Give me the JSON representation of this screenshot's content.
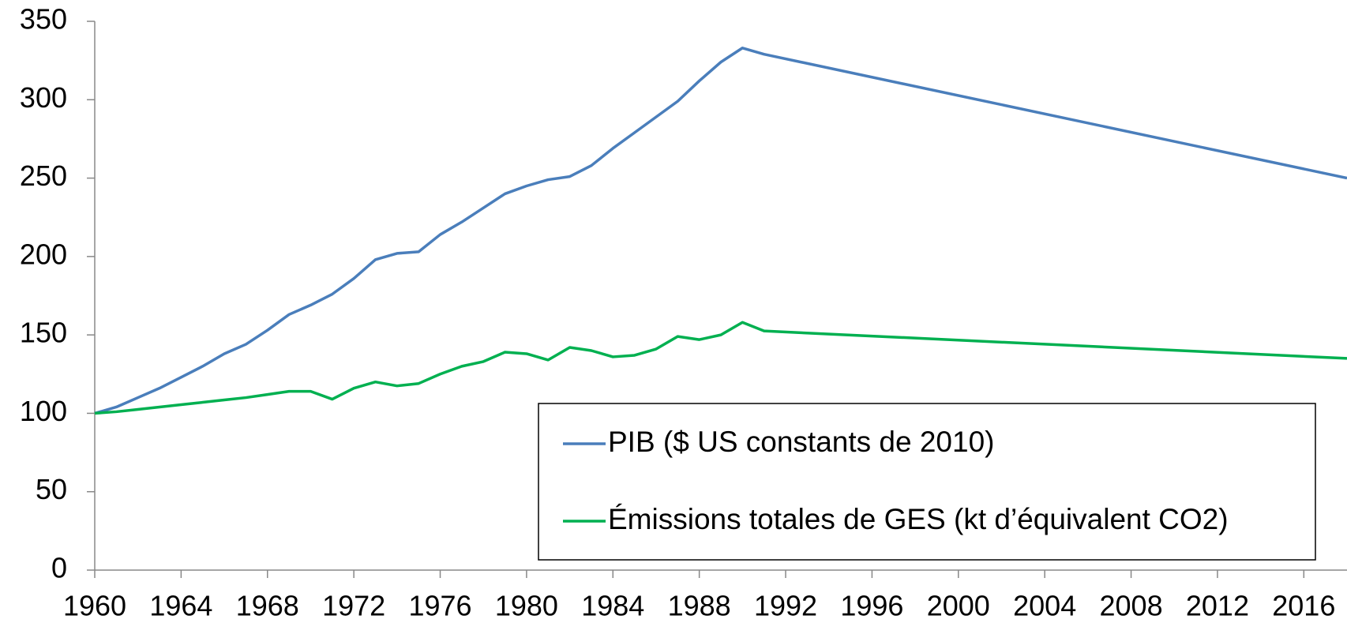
{
  "chart_data": {
    "type": "line",
    "x": [
      1960,
      1961,
      1962,
      1963,
      1964,
      1965,
      1966,
      1967,
      1968,
      1969,
      1970,
      1971,
      1972,
      1973,
      1974,
      1975,
      1976,
      1977,
      1978,
      1979,
      1980,
      1981,
      1982,
      1983,
      1984,
      1985,
      1986,
      1987,
      1988,
      1989,
      1990,
      1991,
      2018
    ],
    "series": [
      {
        "name": "PIB ($ US constants de 2010)",
        "color": "#4a7ebb",
        "values": [
          100,
          104,
          110,
          116,
          123,
          130,
          138,
          144,
          153,
          163,
          169,
          176,
          186,
          198,
          202,
          203,
          214,
          222,
          231,
          240,
          245,
          249,
          251,
          258,
          269,
          279,
          289,
          299,
          312,
          324,
          333,
          329,
          250
        ]
      },
      {
        "name": "Émissions totales de GES (kt d’équivalent CO2)",
        "color": "#00b050",
        "values": [
          100,
          101,
          102.5,
          104,
          105.5,
          107,
          108.5,
          110,
          112,
          114,
          114,
          109,
          116,
          120,
          117.5,
          119,
          125,
          130,
          133,
          139,
          138,
          134,
          142,
          140,
          136,
          137,
          141,
          149,
          147,
          150,
          158,
          152.5,
          135
        ]
      }
    ],
    "xlim": [
      1960,
      2018
    ],
    "xticks": [
      1960,
      1964,
      1968,
      1972,
      1976,
      1980,
      1984,
      1988,
      1992,
      1996,
      2000,
      2004,
      2008,
      2012,
      2016
    ],
    "ylim": [
      0,
      350
    ],
    "yticks": [
      0,
      50,
      100,
      150,
      200,
      250,
      300,
      350
    ],
    "grid": false
  }
}
